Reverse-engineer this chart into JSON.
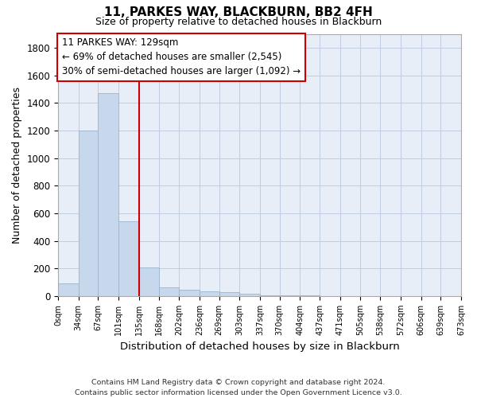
{
  "title": "11, PARKES WAY, BLACKBURN, BB2 4FH",
  "subtitle": "Size of property relative to detached houses in Blackburn",
  "xlabel": "Distribution of detached houses by size in Blackburn",
  "ylabel": "Number of detached properties",
  "bar_color": "#c8d8ec",
  "bar_edge_color": "#9ab5cf",
  "background_color": "#ffffff",
  "plot_bg_color": "#e8eef8",
  "grid_color": "#c0cce0",
  "vline_color": "#cc0000",
  "vline_x": 135,
  "bin_edges": [
    0,
    34,
    67,
    101,
    135,
    168,
    202,
    236,
    269,
    303,
    337,
    370,
    404,
    437,
    471,
    505,
    538,
    572,
    606,
    639,
    673
  ],
  "bar_heights": [
    90,
    1200,
    1470,
    540,
    205,
    65,
    47,
    35,
    28,
    15,
    8,
    5,
    3,
    2,
    1,
    1,
    0,
    0,
    0,
    0
  ],
  "annotation_line1": "11 PARKES WAY: 129sqm",
  "annotation_line2": "← 69% of detached houses are smaller (2,545)",
  "annotation_line3": "30% of semi-detached houses are larger (1,092) →",
  "annotation_box_color": "#ffffff",
  "annotation_box_edge_color": "#cc0000",
  "ylim": [
    0,
    1900
  ],
  "yticks": [
    0,
    200,
    400,
    600,
    800,
    1000,
    1200,
    1400,
    1600,
    1800
  ],
  "footer_text": "Contains HM Land Registry data © Crown copyright and database right 2024.\nContains public sector information licensed under the Open Government Licence v3.0.",
  "tick_labels": [
    "0sqm",
    "34sqm",
    "67sqm",
    "101sqm",
    "135sqm",
    "168sqm",
    "202sqm",
    "236sqm",
    "269sqm",
    "303sqm",
    "337sqm",
    "370sqm",
    "404sqm",
    "437sqm",
    "471sqm",
    "505sqm",
    "538sqm",
    "572sqm",
    "606sqm",
    "639sqm",
    "673sqm"
  ]
}
